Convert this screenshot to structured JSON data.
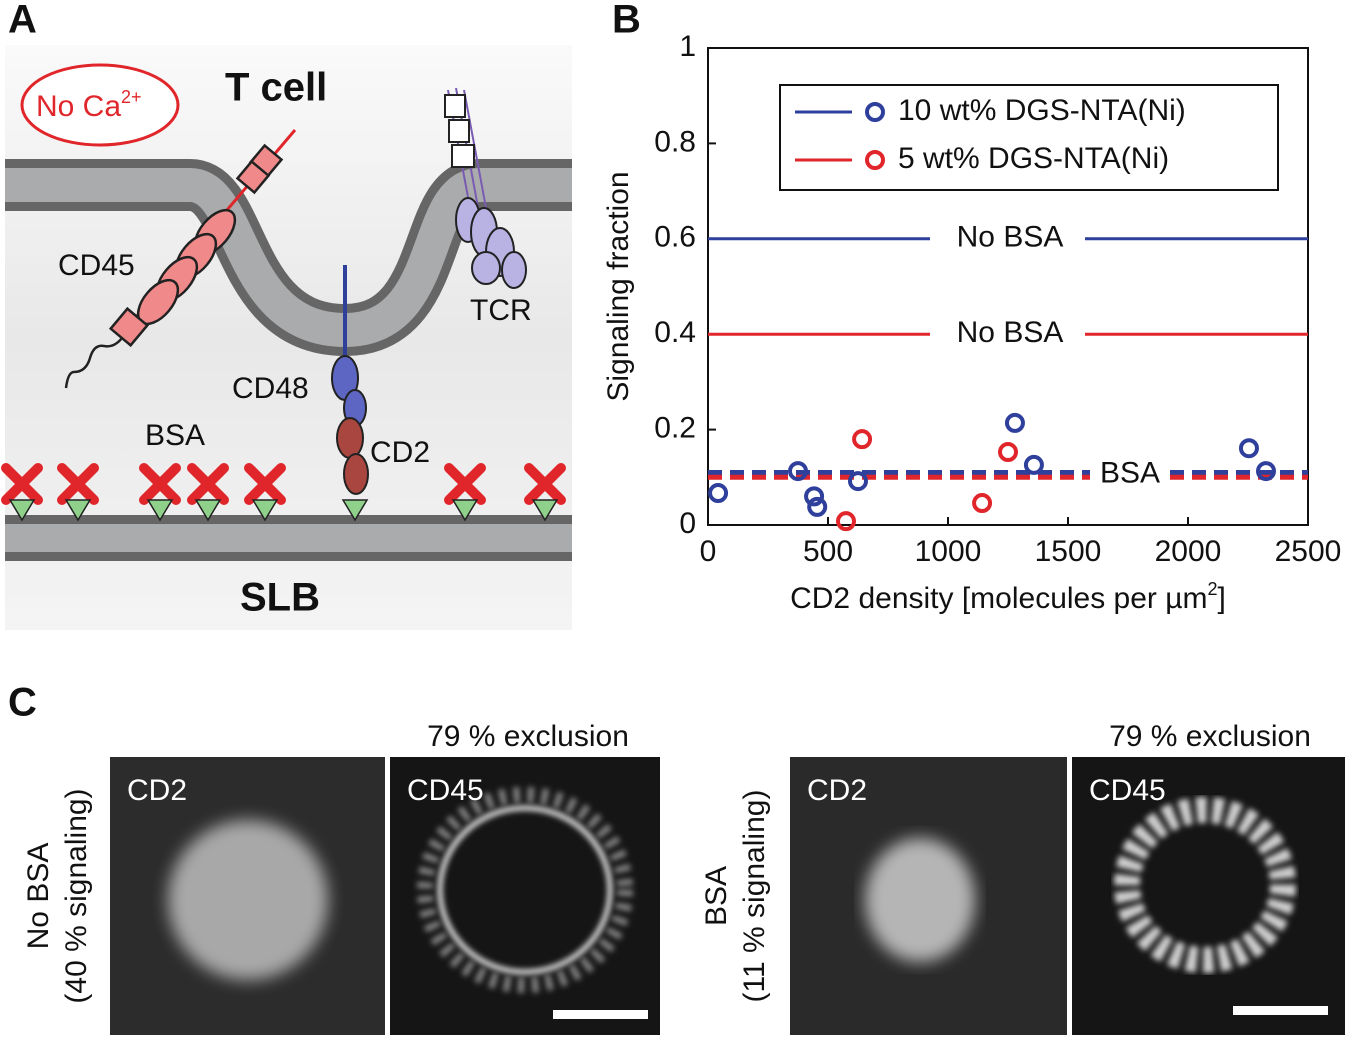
{
  "panel_a": {
    "label": "A",
    "no_calcium": {
      "text": "No Ca",
      "sup": "2+"
    },
    "t_cell": "T cell",
    "cd45": "CD45",
    "tcr": "TCR",
    "cd48": "CD48",
    "bsa": "BSA",
    "cd2": "CD2",
    "slb": "SLB"
  },
  "chart_data": {
    "panel_label": "B",
    "type": "scatter",
    "ylabel": "Signaling fraction",
    "xlabel": {
      "text": "CD2 density [molecules per µm",
      "sup": "2",
      "end": "]"
    },
    "xlim": [
      0,
      2500
    ],
    "ylim": [
      0,
      1
    ],
    "xticks": [
      0,
      500,
      1000,
      1500,
      2000,
      2500
    ],
    "yticks": [
      0,
      0.2,
      0.4,
      0.6,
      0.8,
      1
    ],
    "legend": "upper right",
    "series": [
      {
        "name": "10 wt% DGS-NTA(Ni)",
        "color": "#2f3f9c",
        "x": [
          42,
          375,
          442,
          455,
          625,
          1279,
          1358,
          2254,
          2325
        ],
        "values": [
          0.067,
          0.113,
          0.06,
          0.038,
          0.092,
          0.214,
          0.126,
          0.161,
          0.113
        ],
        "no_bsa_level": 0.6,
        "bsa_level": 0.11
      },
      {
        "name": "5 wt% DGS-NTA(Ni)",
        "color": "#e0262b",
        "x": [
          575,
          642,
          1142,
          1250
        ],
        "values": [
          0.008,
          0.18,
          0.046,
          0.153
        ],
        "no_bsa_level": 0.4,
        "bsa_level": 0.1
      }
    ],
    "annotations": [
      "No BSA",
      "No BSA",
      "BSA"
    ]
  },
  "panel_c": {
    "label": "C",
    "rows": [
      {
        "condition": "No BSA",
        "signaling": "(40 % signaling)",
        "exclusion": "79 % exclusion",
        "channels": [
          "CD2",
          "CD45"
        ]
      },
      {
        "condition": "BSA",
        "signaling": "(11 % signaling)",
        "exclusion": "79 % exclusion",
        "channels": [
          "CD2",
          "CD45"
        ]
      }
    ]
  }
}
